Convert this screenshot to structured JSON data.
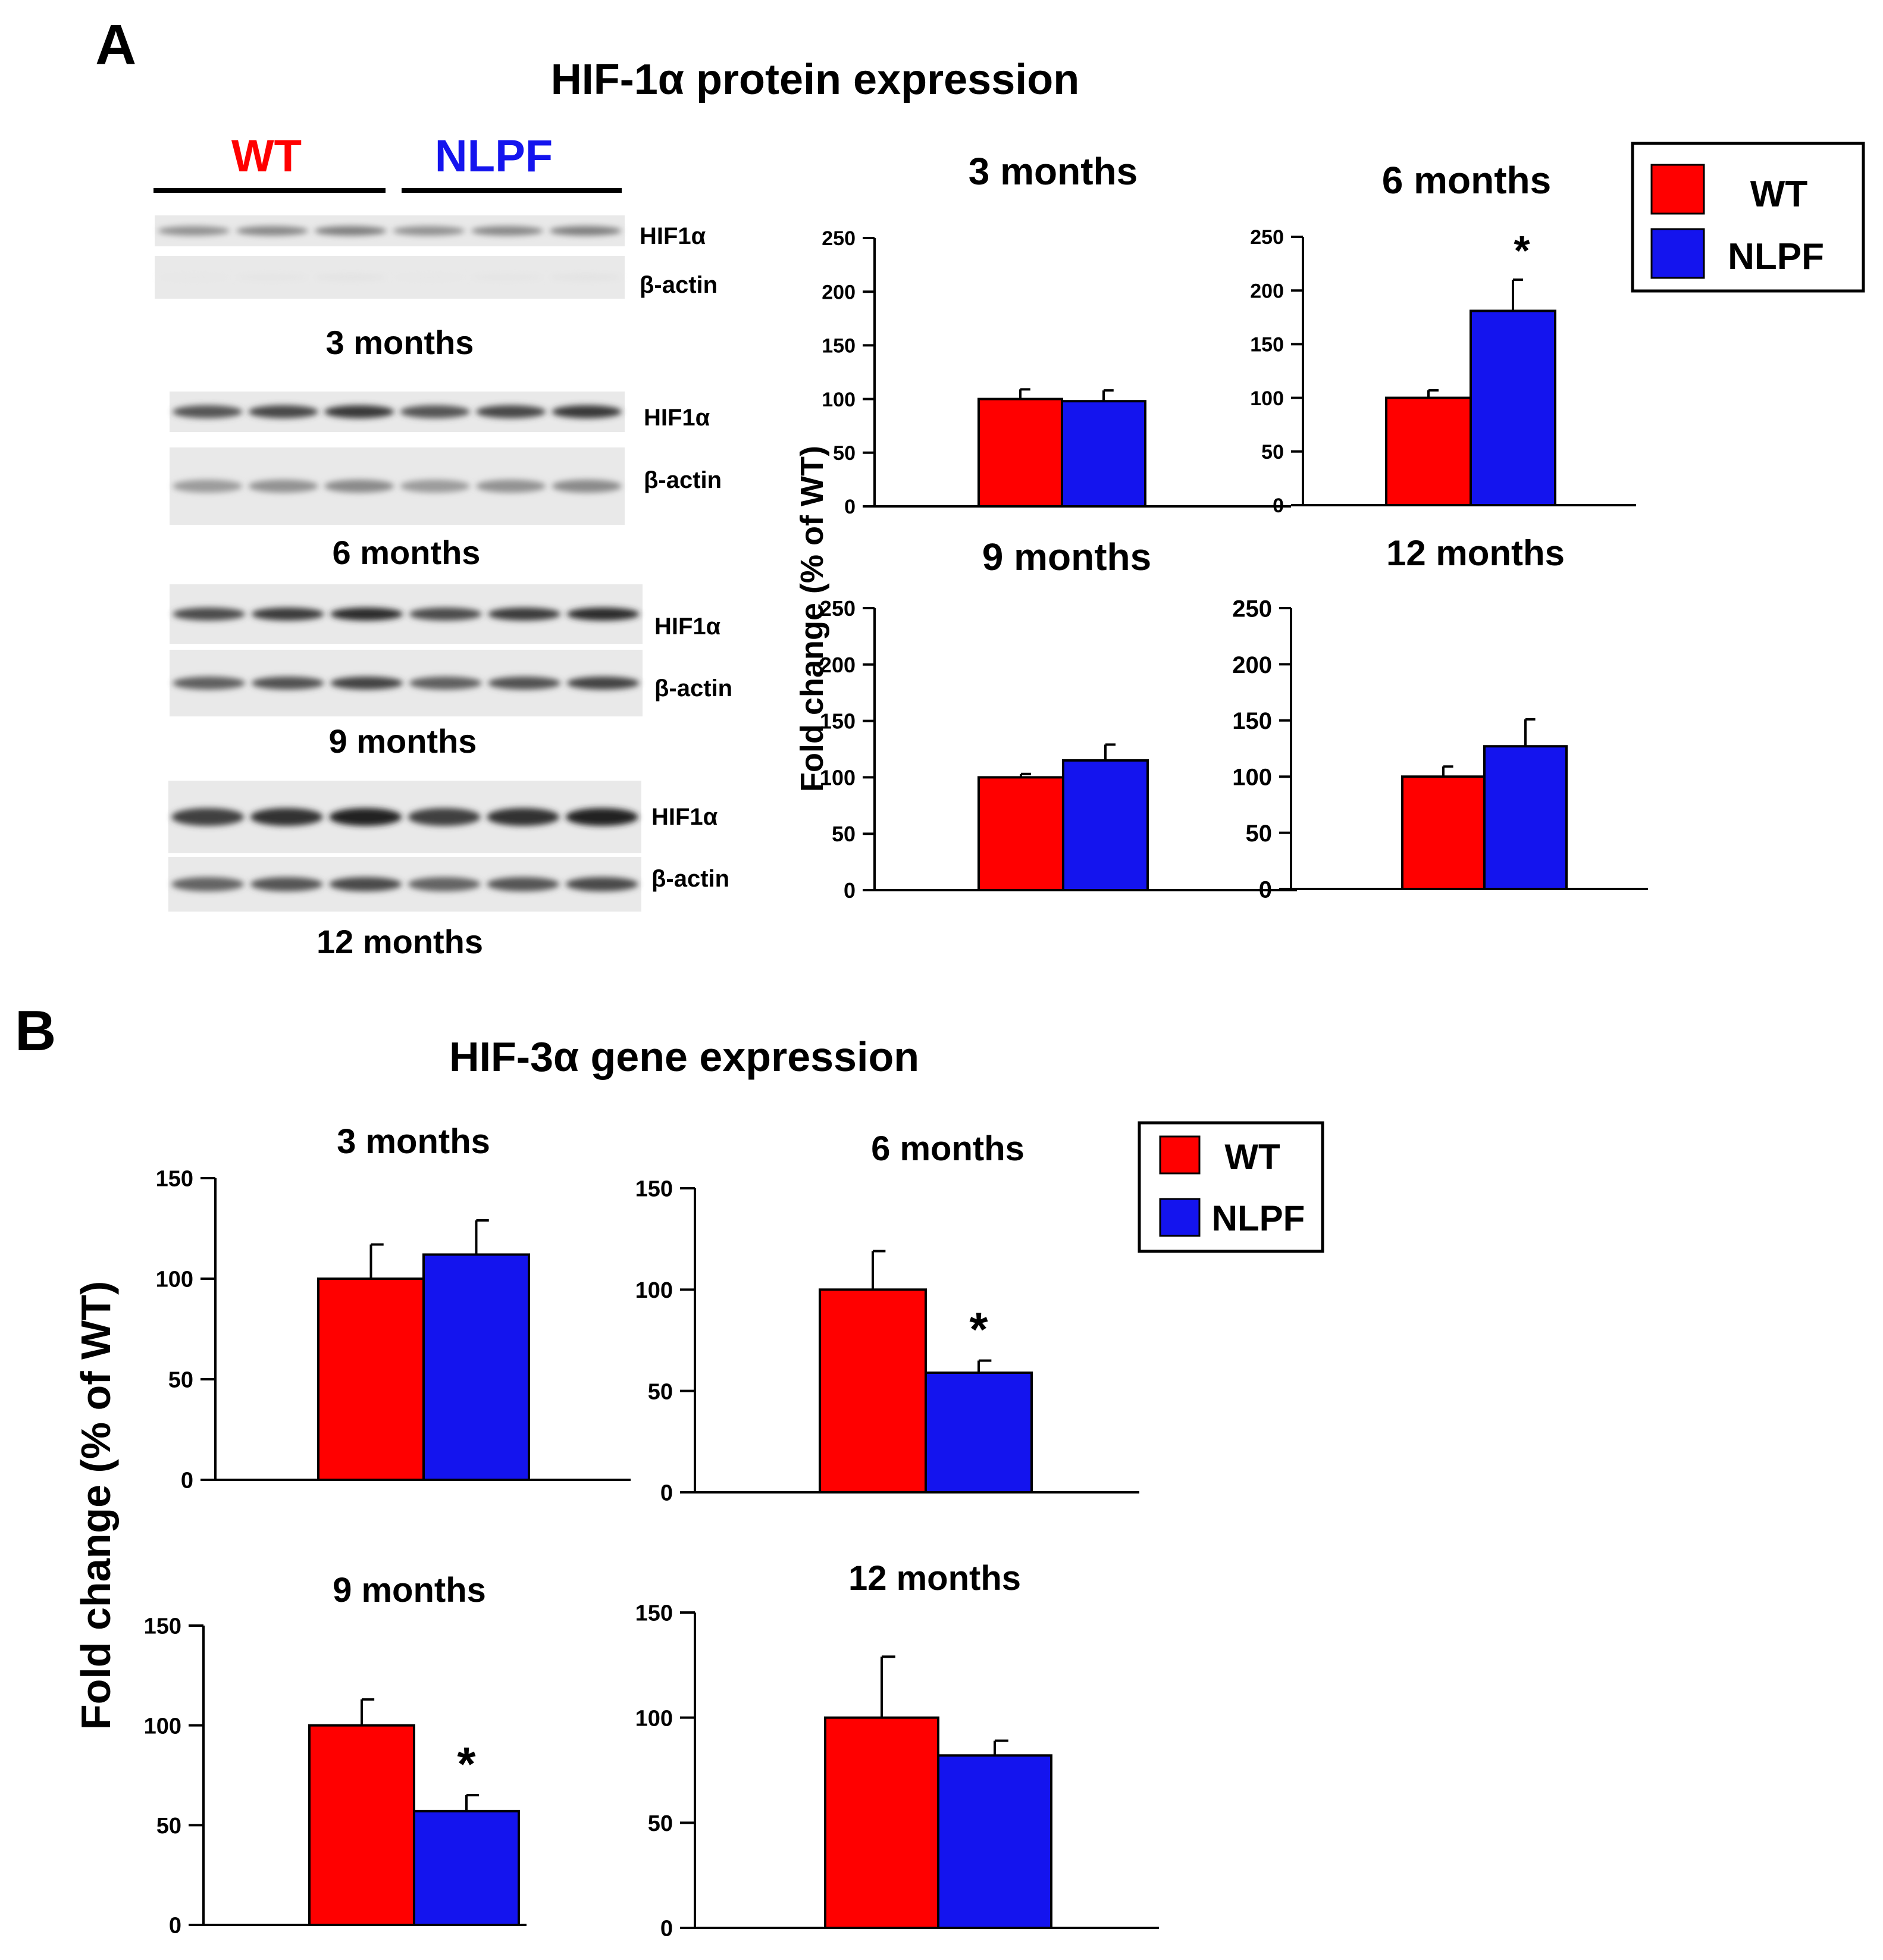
{
  "figure": {
    "panel_a_letter": "A",
    "panel_a_title": "HIF-1α protein expression",
    "panel_b_letter": "B",
    "panel_b_title": "HIF-3α gene expression",
    "wt_color": "#ff0000",
    "nlpf_color": "#1414ee"
  },
  "blots": {
    "group_labels": [
      "WT",
      "NLPF"
    ],
    "band_labels": [
      "HIF1α",
      "β-actin"
    ],
    "captions": [
      "3 months",
      "6 months",
      "9 months",
      "12 months"
    ]
  },
  "legend": {
    "entries": [
      "WT",
      "NLPF"
    ]
  },
  "shared_ylabel": "Fold change (% of WT)",
  "sig_mark": "*",
  "chart_data": [
    {
      "type": "bar",
      "panel": "A",
      "title": "3 months",
      "categories": [
        "WT",
        "NLPF"
      ],
      "values": [
        100,
        98
      ],
      "errors": [
        9,
        10
      ],
      "ylim": [
        0,
        250
      ],
      "yticks": [
        0,
        50,
        100,
        150,
        200,
        250
      ],
      "ylabel": "Fold change (% of WT)",
      "significant": [
        false,
        false
      ]
    },
    {
      "type": "bar",
      "panel": "A",
      "title": "6 months",
      "categories": [
        "WT",
        "NLPF"
      ],
      "values": [
        100,
        181
      ],
      "errors": [
        7,
        29
      ],
      "ylim": [
        0,
        250
      ],
      "yticks": [
        0,
        50,
        100,
        150,
        200,
        250
      ],
      "ylabel": "Fold change (% of WT)",
      "significant": [
        false,
        true
      ]
    },
    {
      "type": "bar",
      "panel": "A",
      "title": "9 months",
      "categories": [
        "WT",
        "NLPF"
      ],
      "values": [
        100,
        115
      ],
      "errors": [
        3,
        14
      ],
      "ylim": [
        0,
        250
      ],
      "yticks": [
        0,
        50,
        100,
        150,
        200,
        250
      ],
      "ylabel": "Fold change (% of WT)",
      "significant": [
        false,
        false
      ]
    },
    {
      "type": "bar",
      "panel": "A",
      "title": "12 months",
      "categories": [
        "WT",
        "NLPF"
      ],
      "values": [
        100,
        127
      ],
      "errors": [
        9,
        24
      ],
      "ylim": [
        0,
        250
      ],
      "yticks": [
        0,
        50,
        100,
        150,
        200,
        250
      ],
      "ylabel": "Fold change (% of WT)",
      "significant": [
        false,
        false
      ]
    },
    {
      "type": "bar",
      "panel": "B",
      "title": "3 months",
      "categories": [
        "WT",
        "NLPF"
      ],
      "values": [
        100,
        112
      ],
      "errors": [
        17,
        17
      ],
      "ylim": [
        0,
        150
      ],
      "yticks": [
        0,
        50,
        100,
        150
      ],
      "ylabel": "Fold change (% of WT)",
      "significant": [
        false,
        false
      ]
    },
    {
      "type": "bar",
      "panel": "B",
      "title": "6 months",
      "categories": [
        "WT",
        "NLPF"
      ],
      "values": [
        100,
        59
      ],
      "errors": [
        19,
        6
      ],
      "ylim": [
        0,
        150
      ],
      "yticks": [
        0,
        50,
        100,
        150
      ],
      "ylabel": "Fold change (% of WT)",
      "significant": [
        false,
        true
      ]
    },
    {
      "type": "bar",
      "panel": "B",
      "title": "9 months",
      "categories": [
        "WT",
        "NLPF"
      ],
      "values": [
        100,
        57
      ],
      "errors": [
        13,
        8
      ],
      "ylim": [
        0,
        150
      ],
      "yticks": [
        0,
        50,
        100,
        150
      ],
      "ylabel": "Fold change (% of WT)",
      "significant": [
        false,
        true
      ]
    },
    {
      "type": "bar",
      "panel": "B",
      "title": "12 months",
      "categories": [
        "WT",
        "NLPF"
      ],
      "values": [
        100,
        82
      ],
      "errors": [
        29,
        7
      ],
      "ylim": [
        0,
        150
      ],
      "yticks": [
        0,
        50,
        100,
        150
      ],
      "ylabel": "Fold change (% of WT)",
      "significant": [
        false,
        false
      ]
    }
  ]
}
